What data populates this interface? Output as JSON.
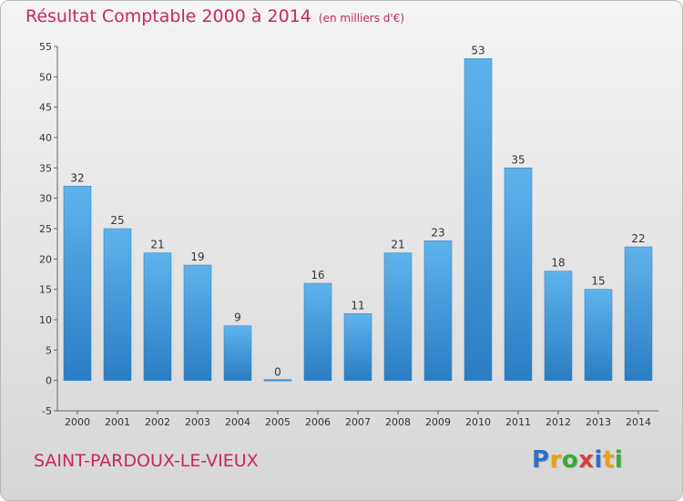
{
  "chart_data": {
    "type": "bar",
    "title": "Résultat Comptable 2000 à 2014",
    "subtitle": "(en milliers d'€)",
    "categories": [
      "2000",
      "2001",
      "2002",
      "2003",
      "2004",
      "2005",
      "2006",
      "2007",
      "2008",
      "2009",
      "2010",
      "2011",
      "2012",
      "2013",
      "2014"
    ],
    "values": [
      32,
      25,
      21,
      19,
      9,
      0,
      16,
      11,
      21,
      23,
      53,
      35,
      18,
      15,
      22
    ],
    "ylim": [
      -5,
      55
    ],
    "yticks": [
      -5,
      0,
      5,
      10,
      15,
      20,
      25,
      30,
      35,
      40,
      45,
      50,
      55
    ],
    "xlabel": "",
    "ylabel": "",
    "grid": false,
    "bar_color": "#4d9fdc"
  },
  "commune": "SAINT-PARDOUX-LE-VIEUX",
  "logo": {
    "letters": [
      "P",
      "r",
      "o",
      "x",
      "i",
      "t",
      "i"
    ],
    "colors": [
      "#2f6fc0",
      "#e8a11a",
      "#3aa83a",
      "#d63f3f",
      "#2f6fc0",
      "#e8a11a",
      "#3aa83a"
    ]
  }
}
